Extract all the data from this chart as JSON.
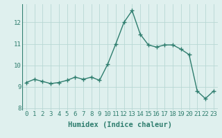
{
  "x": [
    0,
    1,
    2,
    3,
    4,
    5,
    6,
    7,
    8,
    9,
    10,
    11,
    12,
    13,
    14,
    15,
    16,
    17,
    18,
    19,
    20,
    21,
    22,
    23
  ],
  "y": [
    9.2,
    9.35,
    9.25,
    9.15,
    9.2,
    9.3,
    9.45,
    9.35,
    9.45,
    9.3,
    10.05,
    11.0,
    12.0,
    12.55,
    11.45,
    10.95,
    10.85,
    10.95,
    10.95,
    10.75,
    10.5,
    8.8,
    8.45,
    8.8
  ],
  "xlabel": "Humidex (Indice chaleur)",
  "line_color": "#2e7d6e",
  "marker": "+",
  "marker_size": 4,
  "linewidth": 1.0,
  "bg_color": "#dff0ee",
  "grid_color": "#b8d8d4",
  "plot_bg": "#dff0ee",
  "ylim": [
    7.9,
    12.85
  ],
  "xlim": [
    -0.5,
    23.5
  ],
  "yticks": [
    8,
    9,
    10,
    11,
    12
  ],
  "xticks": [
    0,
    1,
    2,
    3,
    4,
    5,
    6,
    7,
    8,
    9,
    10,
    11,
    12,
    13,
    14,
    15,
    16,
    17,
    18,
    19,
    20,
    21,
    22,
    23
  ],
  "xlabel_fontsize": 7.5,
  "tick_fontsize": 6.5,
  "tick_color": "#2e7d6e"
}
